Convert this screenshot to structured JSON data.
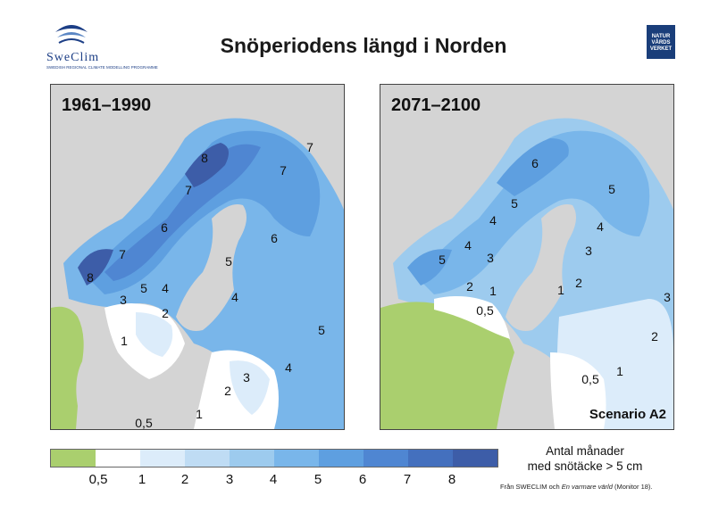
{
  "header": {
    "title": "Snöperiodens längd i Norden",
    "logo_left": {
      "name": "SweClim",
      "subtitle": "SWEDISH REGIONAL CLIMATE MODELLING PROGRAMME"
    },
    "logo_right": {
      "line1": "NATUR",
      "line2": "VÅRDS",
      "line3": "VERKET"
    }
  },
  "maps": [
    {
      "period": "1961–1990",
      "labels": [
        "8",
        "7",
        "7",
        "7",
        "8",
        "7",
        "6",
        "6",
        "5",
        "5",
        "4",
        "4",
        "3",
        "2",
        "1",
        "5",
        "3",
        "4",
        "2",
        "1",
        "0,5"
      ]
    },
    {
      "period": "2071–2100",
      "labels": [
        "6",
        "5",
        "5",
        "4",
        "4",
        "4",
        "3",
        "5",
        "3",
        "2",
        "1",
        "0,5",
        "1",
        "2",
        "3",
        "2",
        "1",
        "0,5"
      ],
      "scenario": "Scenario A2"
    }
  ],
  "legend": {
    "title_line1": "Antal månader",
    "title_line2": "med snötäcke > 5 cm",
    "ticks": [
      "0,5",
      "1",
      "2",
      "3",
      "4",
      "5",
      "6",
      "7",
      "8"
    ],
    "colors": [
      "#aacf6e",
      "#ffffff",
      "#dcecfa",
      "#bfdcf4",
      "#9dcbee",
      "#79b6ea",
      "#5e9fe0",
      "#4f86d2",
      "#4470be",
      "#3d5da8"
    ]
  },
  "source": {
    "prefix": "Från SWECLIM och ",
    "italic": "En varmare värld",
    "suffix": " (Monitor 18)."
  }
}
